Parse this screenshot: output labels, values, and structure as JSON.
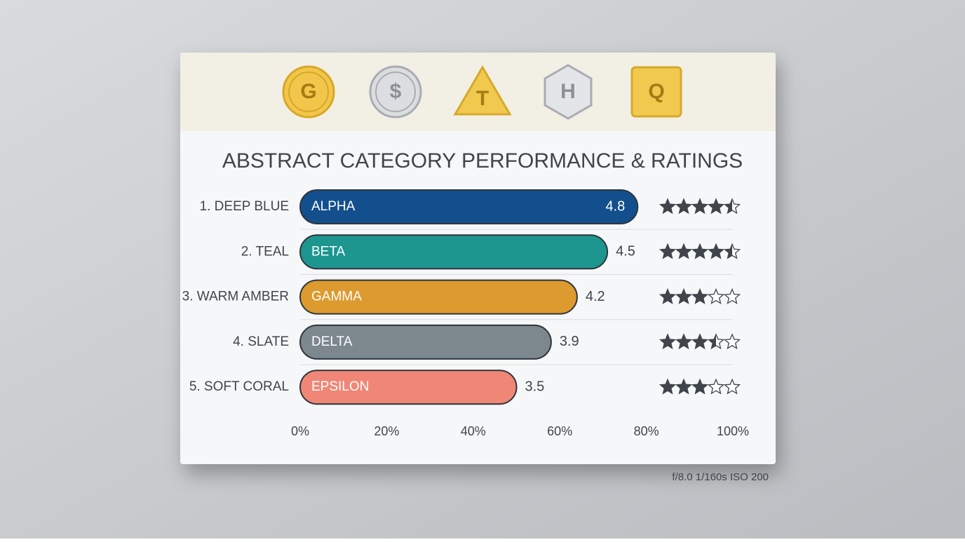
{
  "chart_data": {
    "type": "bar",
    "title": "ABSTRACT CATEGORY PERFORMANCE & RATINGS",
    "icons": [
      "G",
      "$",
      "T",
      "H",
      "Q"
    ],
    "categories": [
      "1. DEEP BLUE",
      "2. TEAL",
      "3. WARM AMBER",
      "4. SLATE",
      "5. SOFT CORAL"
    ],
    "bar_labels": [
      "ALPHA",
      "BETA",
      "GAMMA",
      "DELTA",
      "EPSILON"
    ],
    "values": [
      78,
      71,
      64,
      58,
      50
    ],
    "colors": [
      "#124f8c",
      "#1d9690",
      "#dc9a2f",
      "#7c878e",
      "#f08776"
    ],
    "scores": [
      "4.8",
      "4.5",
      "4.2",
      "3.9",
      "3.5"
    ],
    "stars": [
      4.5,
      4.5,
      3,
      3.5,
      3
    ],
    "xlim": [
      0,
      100
    ],
    "xticks": [
      {
        "value": 0,
        "label": "0%"
      },
      {
        "value": 20,
        "label": "20%"
      },
      {
        "value": 40,
        "label": "40%"
      },
      {
        "value": 60,
        "label": "60%"
      },
      {
        "value": 80,
        "label": "80%"
      },
      {
        "value": 100,
        "label": "100%"
      }
    ],
    "caption": "f/8.0  1/160s  ISO 200"
  }
}
